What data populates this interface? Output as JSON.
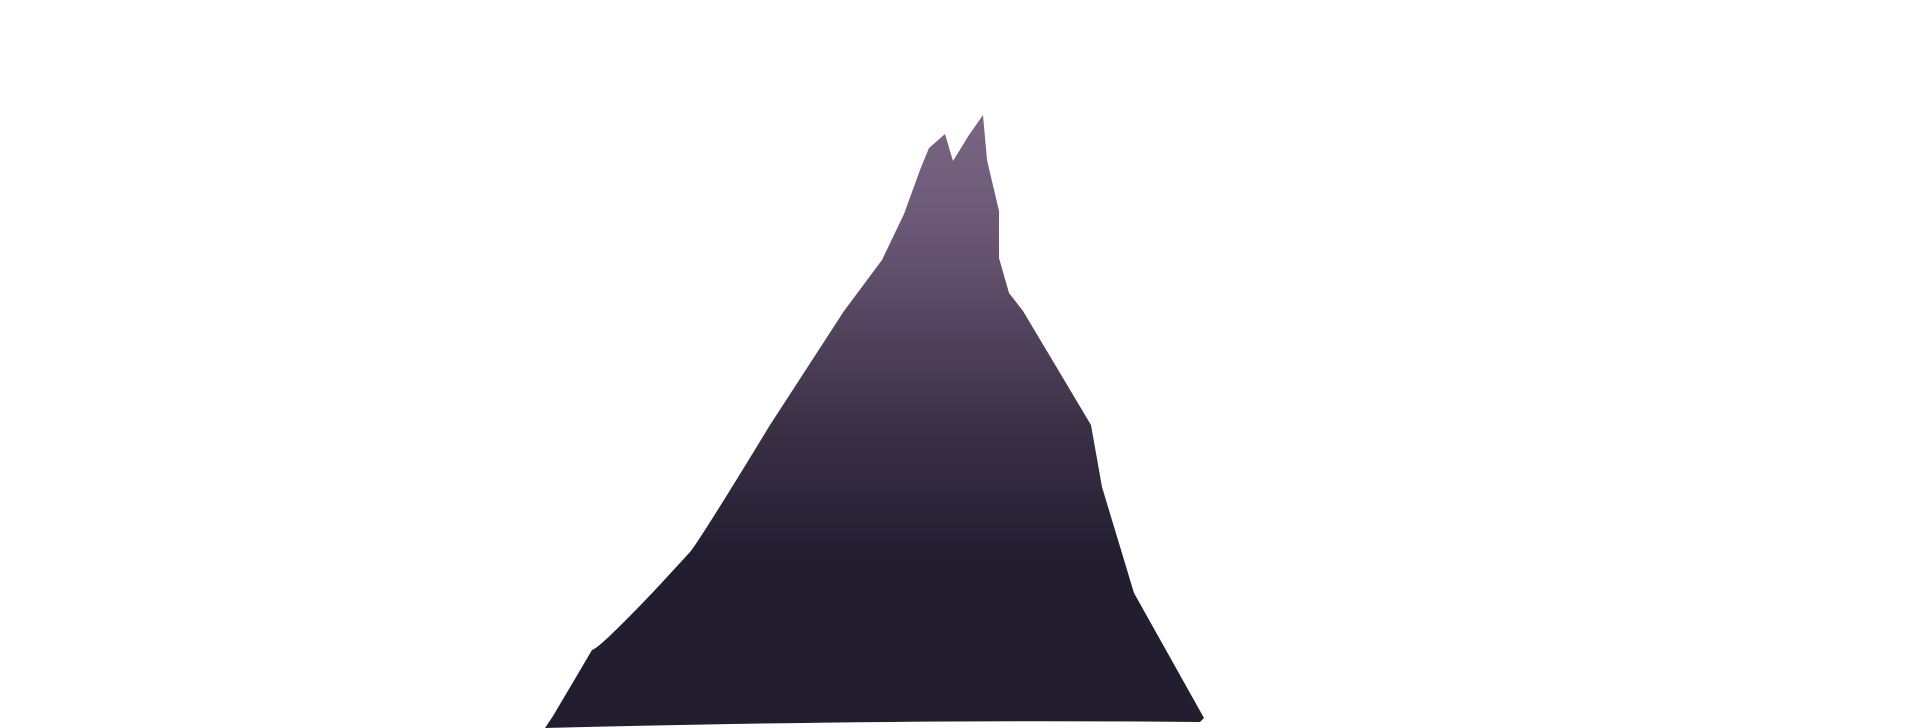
{
  "scene": {
    "background_color": "#ffffff",
    "subject": "mountain-peak-silhouette",
    "colors": {
      "peak_top": "#7a6683",
      "peak_upper": "#6b5876",
      "peak_mid": "#3c3147",
      "peak_base": "#221e30"
    }
  }
}
